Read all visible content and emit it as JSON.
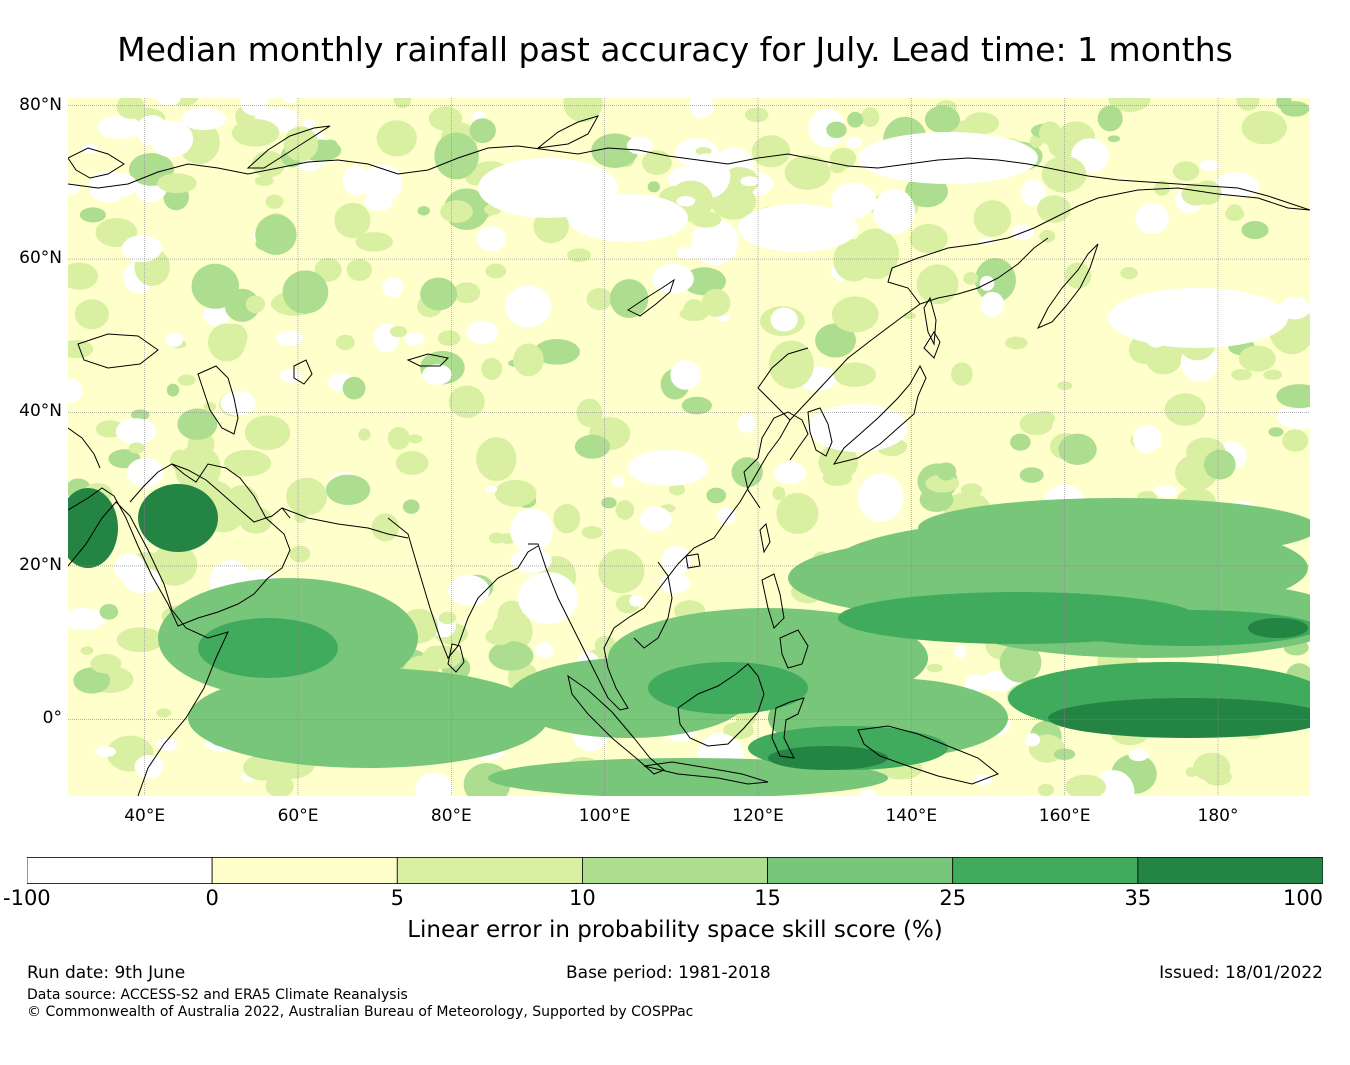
{
  "title": "Median monthly rainfall past accuracy for July. Lead time: 1 months",
  "map": {
    "lat_labels": [
      "80°N",
      "60°N",
      "40°N",
      "20°N",
      "0°"
    ],
    "lon_labels": [
      "40°E",
      "60°E",
      "80°E",
      "100°E",
      "120°E",
      "140°E",
      "160°E",
      "180°"
    ],
    "lat_range": [
      -10,
      81
    ],
    "lon_range": [
      30,
      192
    ],
    "lat_ticks": [
      80,
      60,
      40,
      20,
      0
    ],
    "lon_ticks": [
      40,
      60,
      80,
      100,
      120,
      140,
      160,
      180
    ],
    "colors": {
      "neg": "#ffffff",
      "c0_5": "#ffffcc",
      "c5_10": "#d9f0a3",
      "c10_15": "#addd8e",
      "c15_25": "#78c679",
      "c25_35": "#41ab5d",
      "c35_100": "#238443",
      "coast": "#000000",
      "grid": "#888888"
    }
  },
  "colorbar": {
    "ticks": [
      "-100",
      "0",
      "5",
      "10",
      "15",
      "25",
      "35",
      "100"
    ],
    "colors": [
      "#ffffff",
      "#ffffcc",
      "#d9f0a3",
      "#addd8e",
      "#78c679",
      "#41ab5d",
      "#238443"
    ],
    "label": "Linear error in probability space skill score (%)"
  },
  "footer": {
    "run_date": "Run date: 9th June",
    "base_period": "Base period: 1981-2018",
    "issued": "Issued: 18/01/2022",
    "data_source": "Data source: ACCESS-S2 and ERA5 Climate Reanalysis",
    "copyright": "© Commonwealth of Australia 2022, Australian Bureau of Meteorology, Supported by COSPPac"
  }
}
